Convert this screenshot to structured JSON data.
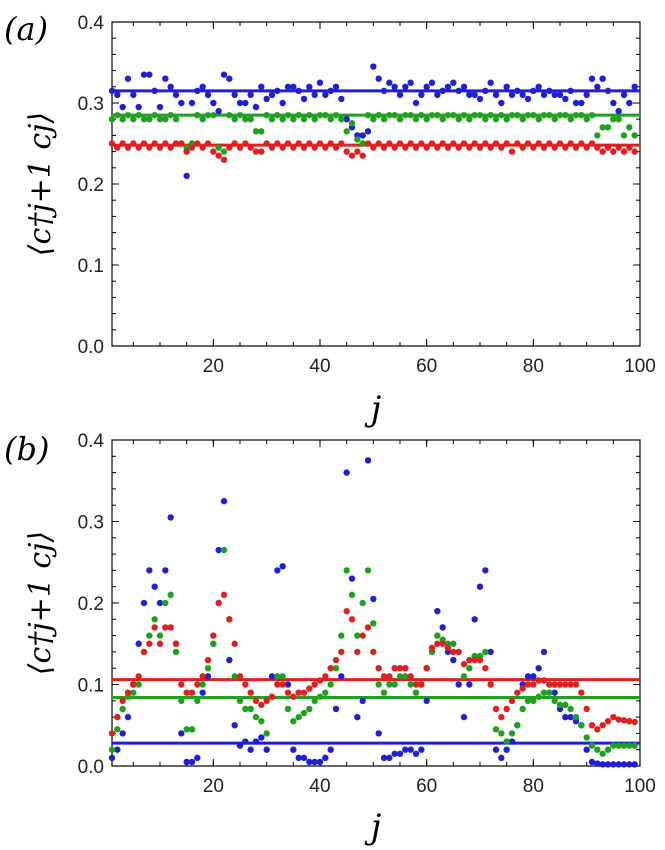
{
  "chart_data": [
    {
      "type": "scatter",
      "panel_label": "(a)",
      "xlabel": "j",
      "ylabel": "⟨c†j+1 cj⟩",
      "xlim": [
        1,
        100
      ],
      "ylim": [
        0,
        0.4
      ],
      "x_ticks": [
        20,
        40,
        60,
        80,
        100
      ],
      "y_ticks": [
        0.0,
        0.1,
        0.2,
        0.3,
        0.4
      ],
      "y_tick_labels": [
        "0.0",
        "0.1",
        "0.2",
        "0.3",
        "0.4"
      ],
      "colors": {
        "blue": "#1f1fd6",
        "green": "#1fa01f",
        "red": "#e01f1f"
      },
      "hlines": [
        {
          "name": "blue",
          "value": 0.315
        },
        {
          "name": "green",
          "value": 0.285
        },
        {
          "name": "red",
          "value": 0.248
        }
      ],
      "series": [
        {
          "name": "blue",
          "values": [
            0.315,
            0.31,
            0.295,
            0.33,
            0.31,
            0.295,
            0.335,
            0.335,
            0.315,
            0.295,
            0.33,
            0.32,
            0.31,
            0.3,
            0.21,
            0.3,
            0.315,
            0.32,
            0.31,
            0.3,
            0.29,
            0.335,
            0.33,
            0.31,
            0.3,
            0.3,
            0.31,
            0.295,
            0.32,
            0.305,
            0.31,
            0.315,
            0.3,
            0.32,
            0.32,
            0.315,
            0.305,
            0.32,
            0.31,
            0.325,
            0.31,
            0.315,
            0.32,
            0.305,
            0.28,
            0.27,
            0.26,
            0.26,
            0.265,
            0.345,
            0.33,
            0.315,
            0.325,
            0.32,
            0.31,
            0.32,
            0.325,
            0.3,
            0.31,
            0.32,
            0.325,
            0.31,
            0.315,
            0.32,
            0.325,
            0.315,
            0.32,
            0.31,
            0.31,
            0.305,
            0.315,
            0.325,
            0.31,
            0.3,
            0.32,
            0.31,
            0.315,
            0.31,
            0.305,
            0.315,
            0.32,
            0.31,
            0.315,
            0.31,
            0.31,
            0.305,
            0.315,
            0.3,
            0.3,
            0.31,
            0.33,
            0.32,
            0.33,
            0.315,
            0.3,
            0.29,
            0.31,
            0.3,
            0.32
          ]
        },
        {
          "name": "green",
          "values": [
            0.28,
            0.285,
            0.28,
            0.285,
            0.28,
            0.285,
            0.28,
            0.28,
            0.285,
            0.28,
            0.28,
            0.285,
            0.28,
            0.25,
            0.245,
            0.25,
            0.285,
            0.28,
            0.285,
            0.285,
            0.245,
            0.24,
            0.285,
            0.28,
            0.285,
            0.28,
            0.28,
            0.265,
            0.265,
            0.285,
            0.28,
            0.285,
            0.28,
            0.285,
            0.28,
            0.285,
            0.28,
            0.285,
            0.28,
            0.285,
            0.285,
            0.28,
            0.285,
            0.28,
            0.265,
            0.275,
            0.255,
            0.25,
            0.285,
            0.28,
            0.285,
            0.28,
            0.285,
            0.285,
            0.28,
            0.285,
            0.285,
            0.28,
            0.285,
            0.28,
            0.285,
            0.285,
            0.28,
            0.285,
            0.285,
            0.28,
            0.285,
            0.28,
            0.285,
            0.285,
            0.28,
            0.285,
            0.28,
            0.285,
            0.28,
            0.285,
            0.285,
            0.28,
            0.285,
            0.285,
            0.28,
            0.285,
            0.285,
            0.28,
            0.285,
            0.285,
            0.28,
            0.285,
            0.285,
            0.28,
            0.285,
            0.26,
            0.27,
            0.27,
            0.28,
            0.28,
            0.26,
            0.27,
            0.26
          ]
        },
        {
          "name": "red",
          "values": [
            0.25,
            0.245,
            0.25,
            0.245,
            0.25,
            0.245,
            0.25,
            0.245,
            0.25,
            0.245,
            0.25,
            0.245,
            0.25,
            0.25,
            0.24,
            0.245,
            0.25,
            0.245,
            0.25,
            0.24,
            0.235,
            0.23,
            0.245,
            0.25,
            0.245,
            0.25,
            0.245,
            0.24,
            0.24,
            0.25,
            0.245,
            0.25,
            0.245,
            0.25,
            0.245,
            0.25,
            0.245,
            0.25,
            0.245,
            0.25,
            0.245,
            0.25,
            0.245,
            0.25,
            0.24,
            0.235,
            0.24,
            0.235,
            0.25,
            0.245,
            0.25,
            0.245,
            0.25,
            0.245,
            0.25,
            0.245,
            0.25,
            0.245,
            0.25,
            0.245,
            0.25,
            0.245,
            0.25,
            0.245,
            0.25,
            0.245,
            0.25,
            0.245,
            0.25,
            0.245,
            0.25,
            0.245,
            0.25,
            0.245,
            0.25,
            0.24,
            0.25,
            0.245,
            0.25,
            0.245,
            0.25,
            0.245,
            0.25,
            0.245,
            0.25,
            0.245,
            0.25,
            0.245,
            0.25,
            0.245,
            0.25,
            0.245,
            0.24,
            0.245,
            0.24,
            0.245,
            0.24,
            0.245,
            0.24
          ]
        }
      ]
    },
    {
      "type": "scatter",
      "panel_label": "(b)",
      "xlabel": "j",
      "ylabel": "⟨c†j+1 cj⟩",
      "xlim": [
        1,
        100
      ],
      "ylim": [
        0,
        0.4
      ],
      "x_ticks": [
        20,
        40,
        60,
        80,
        100
      ],
      "y_ticks": [
        0.0,
        0.1,
        0.2,
        0.3,
        0.4
      ],
      "y_tick_labels": [
        "0.0",
        "0.1",
        "0.2",
        "0.3",
        "0.4"
      ],
      "colors": {
        "blue": "#1f1fd6",
        "green": "#1fa01f",
        "red": "#e01f1f"
      },
      "hlines": [
        {
          "name": "blue",
          "value": 0.028
        },
        {
          "name": "green",
          "value": 0.084
        },
        {
          "name": "red",
          "value": 0.106
        }
      ],
      "series": [
        {
          "name": "blue",
          "values": [
            0.01,
            0.02,
            0.04,
            0.06,
            0.1,
            0.15,
            0.2,
            0.24,
            0.22,
            0.2,
            0.24,
            0.305,
            0.15,
            0.04,
            0.005,
            0.005,
            0.01,
            0.09,
            0.11,
            0.15,
            0.265,
            0.325,
            0.13,
            0.05,
            0.025,
            0.03,
            0.02,
            0.03,
            0.035,
            0.02,
            0.11,
            0.24,
            0.245,
            0.1,
            0.02,
            0.01,
            0.01,
            0.005,
            0.005,
            0.005,
            0.01,
            0.02,
            0.07,
            0.11,
            0.36,
            0.23,
            0.06,
            0.08,
            0.375,
            0.205,
            0.04,
            0.01,
            0.01,
            0.015,
            0.015,
            0.02,
            0.02,
            0.015,
            0.02,
            0.08,
            0.14,
            0.19,
            0.17,
            0.14,
            0.13,
            0.1,
            0.06,
            0.1,
            0.18,
            0.22,
            0.24,
            0.14,
            0.02,
            0.01,
            0.02,
            0.03,
            0.05,
            0.1,
            0.11,
            0.11,
            0.12,
            0.14,
            0.1,
            0.09,
            0.07,
            0.06,
            0.06,
            0.055,
            0.05,
            0.02,
            0.005,
            0.003,
            0.002,
            0.002,
            0.002,
            0.002,
            0.002,
            0.002,
            0.002
          ]
        },
        {
          "name": "green",
          "values": [
            0.02,
            0.045,
            0.07,
            0.085,
            0.09,
            0.1,
            0.14,
            0.16,
            0.18,
            0.16,
            0.2,
            0.21,
            0.14,
            0.08,
            0.045,
            0.045,
            0.08,
            0.1,
            0.12,
            0.15,
            0.2,
            0.265,
            0.18,
            0.11,
            0.08,
            0.07,
            0.07,
            0.06,
            0.055,
            0.04,
            0.085,
            0.11,
            0.11,
            0.07,
            0.055,
            0.06,
            0.065,
            0.07,
            0.08,
            0.085,
            0.09,
            0.1,
            0.12,
            0.16,
            0.24,
            0.21,
            0.16,
            0.2,
            0.24,
            0.175,
            0.1,
            0.09,
            0.1,
            0.1,
            0.11,
            0.11,
            0.1,
            0.09,
            0.1,
            0.12,
            0.14,
            0.16,
            0.155,
            0.15,
            0.15,
            0.14,
            0.11,
            0.12,
            0.135,
            0.135,
            0.14,
            0.1,
            0.045,
            0.04,
            0.03,
            0.04,
            0.05,
            0.07,
            0.08,
            0.08,
            0.085,
            0.09,
            0.09,
            0.08,
            0.075,
            0.075,
            0.07,
            0.06,
            0.05,
            0.035,
            0.025,
            0.02,
            0.015,
            0.02,
            0.025,
            0.025,
            0.025,
            0.025,
            0.025
          ]
        },
        {
          "name": "red",
          "values": [
            0.04,
            0.06,
            0.08,
            0.09,
            0.1,
            0.11,
            0.14,
            0.15,
            0.17,
            0.15,
            0.17,
            0.17,
            0.15,
            0.1,
            0.09,
            0.09,
            0.1,
            0.11,
            0.13,
            0.16,
            0.2,
            0.21,
            0.18,
            0.15,
            0.11,
            0.1,
            0.09,
            0.08,
            0.075,
            0.08,
            0.085,
            0.1,
            0.1,
            0.09,
            0.085,
            0.09,
            0.09,
            0.095,
            0.1,
            0.105,
            0.11,
            0.12,
            0.13,
            0.14,
            0.19,
            0.18,
            0.14,
            0.16,
            0.17,
            0.14,
            0.12,
            0.11,
            0.11,
            0.12,
            0.12,
            0.12,
            0.11,
            0.1,
            0.1,
            0.12,
            0.145,
            0.15,
            0.15,
            0.145,
            0.14,
            0.14,
            0.125,
            0.13,
            0.13,
            0.13,
            0.12,
            0.1,
            0.07,
            0.06,
            0.07,
            0.08,
            0.09,
            0.095,
            0.1,
            0.1,
            0.105,
            0.105,
            0.1,
            0.1,
            0.1,
            0.1,
            0.1,
            0.1,
            0.09,
            0.07,
            0.05,
            0.045,
            0.05,
            0.055,
            0.06,
            0.057,
            0.056,
            0.055,
            0.054
          ]
        }
      ]
    }
  ]
}
